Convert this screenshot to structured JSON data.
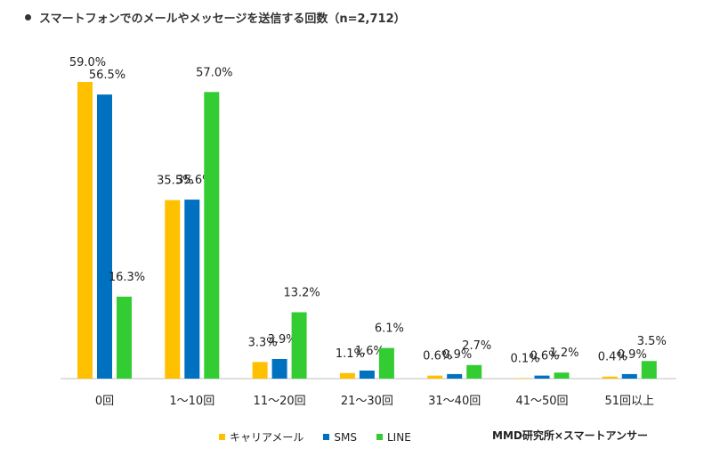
{
  "chart_data": {
    "type": "bar",
    "title": "スマートフォンでのメールやメッセージを送信する回数（n=2,712）",
    "categories": [
      "0回",
      "1～10回",
      "11～20回",
      "21～30回",
      "31～40回",
      "41～50回",
      "51回以上"
    ],
    "series": [
      {
        "name": "キャリアメール",
        "color": "#FFC000",
        "values": [
          59.0,
          35.5,
          3.3,
          1.1,
          0.6,
          0.1,
          0.4
        ],
        "labels": [
          "59.0%",
          "35.5%",
          "3.3%",
          "1.1%",
          "0.6%",
          "0.1%",
          "0.4%"
        ]
      },
      {
        "name": "SMS",
        "color": "#0070C0",
        "values": [
          56.5,
          35.6,
          3.9,
          1.6,
          0.9,
          0.6,
          0.9
        ],
        "labels": [
          "56.5%",
          "35.6%",
          "3.9%",
          "1.6%",
          "0.9%",
          "0.6%",
          "0.9%"
        ]
      },
      {
        "name": "LINE",
        "color": "#33CC33",
        "values": [
          16.3,
          57.0,
          13.2,
          6.1,
          2.7,
          1.2,
          3.5
        ],
        "labels": [
          "16.3%",
          "57.0%",
          "13.2%",
          "6.1%",
          "2.7%",
          "1.2%",
          "3.5%"
        ]
      }
    ],
    "ylim": [
      0,
      60
    ],
    "grid": false,
    "legend_position": "bottom"
  },
  "source": "MMD研究所×スマートアンサー"
}
